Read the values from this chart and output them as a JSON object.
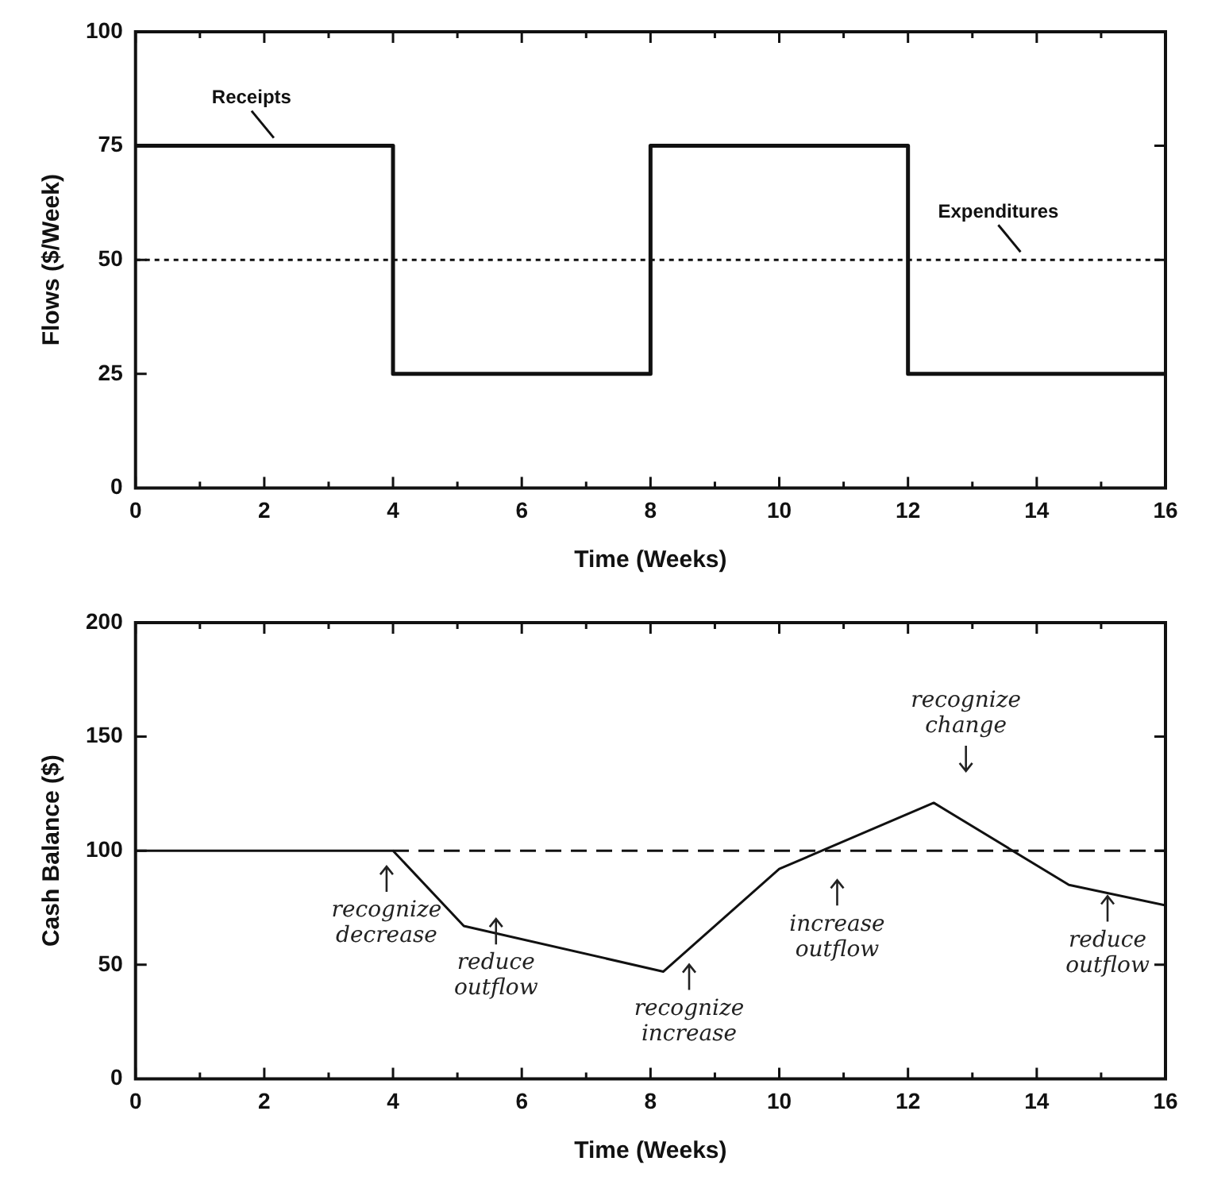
{
  "chart_data": [
    {
      "type": "step",
      "xlabel": "Time (Weeks)",
      "ylabel": "Flows ($/Week)",
      "xlim": [
        0,
        16
      ],
      "ylim": [
        0,
        100
      ],
      "xticks": [
        0,
        {
          "value": 1,
          "label": null
        },
        2,
        {
          "value": 3,
          "label": null
        },
        4,
        {
          "value": 5,
          "label": null
        },
        6,
        {
          "value": 7,
          "label": null
        },
        8,
        {
          "value": 9,
          "label": null
        },
        10,
        {
          "value": 11,
          "label": null
        },
        12,
        {
          "value": 13,
          "label": null
        },
        14,
        {
          "value": 15,
          "label": null
        },
        16
      ],
      "yticks": [
        0,
        25,
        50,
        75,
        100
      ],
      "grid": false,
      "legend": false,
      "series": [
        {
          "name": "Receipts",
          "color": "#111111",
          "line_style": "solid",
          "x": [
            0,
            4,
            8,
            12,
            16
          ],
          "values": [
            75,
            25,
            75,
            25,
            25
          ]
        },
        {
          "name": "Expenditures",
          "type": "line",
          "color": "#111111",
          "line_style": "dotted",
          "x": [
            0,
            16
          ],
          "values": [
            50,
            50
          ]
        }
      ]
    },
    {
      "type": "line",
      "xlabel": "Time (Weeks)",
      "ylabel": "Cash Balance ($)",
      "xlim": [
        0,
        16
      ],
      "ylim": [
        0,
        200
      ],
      "xticks": [
        0,
        {
          "value": 1,
          "label": null
        },
        2,
        {
          "value": 3,
          "label": null
        },
        4,
        {
          "value": 5,
          "label": null
        },
        6,
        {
          "value": 7,
          "label": null
        },
        8,
        {
          "value": 9,
          "label": null
        },
        10,
        {
          "value": 11,
          "label": null
        },
        12,
        {
          "value": 13,
          "label": null
        },
        14,
        {
          "value": 15,
          "label": null
        },
        16
      ],
      "yticks": [
        0,
        50,
        100,
        150,
        200
      ],
      "grid": false,
      "legend": false,
      "series": [
        {
          "color": "#111111",
          "line_style": "solid",
          "x": [
            0,
            4,
            5.1,
            8.2,
            10,
            12.4,
            14.5,
            16
          ],
          "values": [
            100,
            100,
            67,
            47,
            92,
            121,
            85,
            76
          ]
        },
        {
          "color": "#111111",
          "line_style": "dashed",
          "x": [
            4,
            16
          ],
          "values": [
            100,
            100
          ]
        }
      ],
      "annotations": [
        "recognize decrease",
        "reduce outflow",
        "recognize increase",
        "increase outflow",
        "recognize change",
        "reduce outflow"
      ]
    }
  ]
}
